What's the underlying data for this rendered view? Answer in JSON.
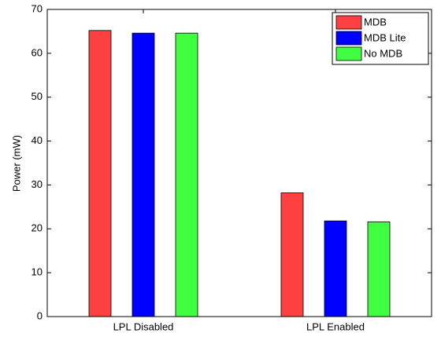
{
  "chart_data": {
    "type": "bar",
    "categories": [
      "LPL Disabled",
      "LPL Enabled"
    ],
    "series": [
      {
        "name": "MDB",
        "color": "#ff4040",
        "values": [
          65.2,
          28.2
        ]
      },
      {
        "name": "MDB Lite",
        "color": "#0000ff",
        "values": [
          64.6,
          21.8
        ]
      },
      {
        "name": "No MDB",
        "color": "#40ff40",
        "values": [
          64.6,
          21.6
        ]
      }
    ],
    "ylabel": "Power (mW)",
    "ylim": [
      0,
      70
    ],
    "yticks": [
      0,
      10,
      20,
      30,
      40,
      50,
      60,
      70
    ],
    "legend": "upper right"
  }
}
